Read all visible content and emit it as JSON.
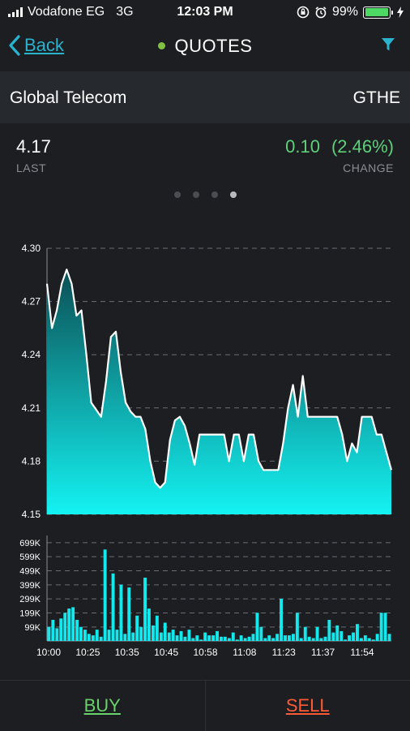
{
  "status_bar": {
    "carrier": "Vodafone EG",
    "network": "3G",
    "time": "12:03 PM",
    "battery_percent": "99%",
    "battery_level": 0.99,
    "icons": [
      "signal-bars-icon",
      "orientation-lock-icon",
      "alarm-icon",
      "battery-icon",
      "charging-icon"
    ]
  },
  "nav": {
    "back_label": "Back",
    "title": "QUOTES",
    "live_color": "#7fc241",
    "accent": "#2ab3ce",
    "icons": [
      "chevron-left-icon",
      "filter-icon"
    ]
  },
  "company": {
    "name": "Global Telecom",
    "symbol": "GTHE"
  },
  "quote": {
    "last_value": "4.17",
    "last_label": "LAST",
    "change_value": "0.10",
    "change_percent": "(2.46%)",
    "change_label": "CHANGE",
    "change_color": "#5fd07a"
  },
  "pager": {
    "count": 4,
    "active_index": 3
  },
  "chart_data": [
    {
      "type": "area",
      "title": "",
      "xlabel": "",
      "ylabel": "",
      "y_ticks": [
        "4.30",
        "4.27",
        "4.24",
        "4.21",
        "4.18",
        "4.15"
      ],
      "ylim": [
        4.15,
        4.3
      ],
      "grid": true,
      "x_range": [
        "10:00",
        "12:02"
      ],
      "values": [
        4.28,
        4.255,
        4.265,
        4.28,
        4.288,
        4.28,
        4.262,
        4.265,
        4.24,
        4.213,
        4.209,
        4.205,
        4.225,
        4.25,
        4.253,
        4.23,
        4.213,
        4.208,
        4.205,
        4.205,
        4.198,
        4.18,
        4.168,
        4.165,
        4.168,
        4.192,
        4.203,
        4.205,
        4.2,
        4.19,
        4.178,
        4.195,
        4.195,
        4.195,
        4.195,
        4.195,
        4.195,
        4.18,
        4.195,
        4.195,
        4.18,
        4.195,
        4.195,
        4.18,
        4.175,
        4.175,
        4.175,
        4.175,
        4.19,
        4.21,
        4.223,
        4.205,
        4.228,
        4.205,
        4.205,
        4.205,
        4.205,
        4.205,
        4.205,
        4.205,
        4.195,
        4.18,
        4.19,
        4.185,
        4.205,
        4.205,
        4.205,
        4.195,
        4.195,
        4.185,
        4.175
      ],
      "colors": {
        "fill_top": "#0b4f54",
        "fill_bottom": "#14f2f2",
        "line": "#ffffff"
      }
    },
    {
      "type": "bar",
      "title": "",
      "xlabel": "",
      "ylabel": "",
      "y_ticks": [
        "699K",
        "599K",
        "499K",
        "399K",
        "299K",
        "199K",
        "99K"
      ],
      "ylim": [
        0,
        750000
      ],
      "grid": true,
      "x_ticks": [
        "10:00",
        "10:25",
        "10:35",
        "10:45",
        "10:58",
        "11:08",
        "11:23",
        "11:37",
        "11:54"
      ],
      "values": [
        100000,
        150000,
        90000,
        160000,
        200000,
        230000,
        240000,
        150000,
        100000,
        80000,
        50000,
        40000,
        80000,
        30000,
        650000,
        80000,
        480000,
        80000,
        400000,
        50000,
        380000,
        60000,
        180000,
        100000,
        450000,
        230000,
        110000,
        180000,
        60000,
        130000,
        60000,
        80000,
        40000,
        70000,
        30000,
        80000,
        20000,
        40000,
        10000,
        60000,
        40000,
        40000,
        70000,
        30000,
        30000,
        20000,
        60000,
        10000,
        40000,
        20000,
        30000,
        50000,
        200000,
        100000,
        20000,
        40000,
        20000,
        50000,
        300000,
        40000,
        40000,
        50000,
        200000,
        20000,
        100000,
        30000,
        20000,
        100000,
        20000,
        30000,
        150000,
        60000,
        110000,
        70000,
        10000,
        40000,
        60000,
        120000,
        20000,
        40000,
        20000,
        10000,
        50000,
        200000,
        200000,
        50000
      ],
      "colors": {
        "bar": "#14e8ec"
      }
    }
  ],
  "footer": {
    "buy_label": "BUY",
    "sell_label": "SELL",
    "buy_color": "#6ad26a",
    "sell_color": "#ff5a36"
  }
}
